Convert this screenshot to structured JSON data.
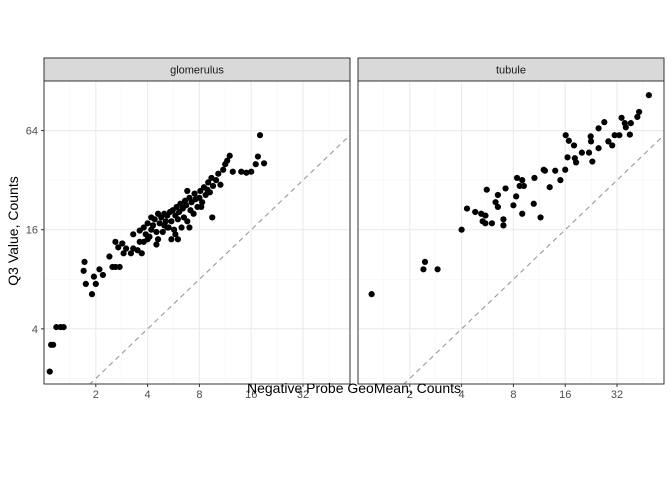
{
  "chart_data": {
    "type": "scatter",
    "xlabel": "Negative Probe GeoMean, Counts",
    "ylabel": "Q3 Value, Counts",
    "x_scale": "log2",
    "y_scale": "log2",
    "xlim": [
      1.0,
      60
    ],
    "ylim": [
      1.85,
      128
    ],
    "x_ticks": [
      2,
      4,
      8,
      16,
      32
    ],
    "x_tick_labels": [
      "2",
      "4",
      "8",
      "16",
      "32"
    ],
    "y_ticks": [
      4,
      16,
      64
    ],
    "y_tick_labels": [
      "4",
      "16",
      "64"
    ],
    "reference_line": "y = x (dashed)",
    "grid": true,
    "colors": {
      "points": "#000000",
      "reference_line": "#999999",
      "panel_background": "#ffffff",
      "panel_border": "#333333",
      "strip_background": "#d9d9d9",
      "grid_major": "#ebebeb",
      "grid_minor": "#f5f5f5"
    },
    "panels": [
      {
        "label": "glomerulus",
        "points": [
          [
            1.08,
            2.2
          ],
          [
            1.1,
            3.2
          ],
          [
            1.13,
            3.2
          ],
          [
            1.18,
            4.1
          ],
          [
            1.25,
            4.1
          ],
          [
            1.3,
            4.1
          ],
          [
            1.7,
            9.0
          ],
          [
            1.72,
            10.2
          ],
          [
            1.75,
            7.5
          ],
          [
            1.9,
            6.5
          ],
          [
            1.95,
            8.3
          ],
          [
            2.0,
            7.5
          ],
          [
            2.1,
            9.2
          ],
          [
            2.2,
            8.5
          ],
          [
            2.4,
            11.0
          ],
          [
            2.5,
            9.5
          ],
          [
            2.6,
            9.5
          ],
          [
            2.6,
            13.5
          ],
          [
            2.7,
            12.5
          ],
          [
            2.75,
            9.5
          ],
          [
            2.85,
            13.2
          ],
          [
            2.9,
            11.5
          ],
          [
            3.0,
            12.3
          ],
          [
            3.2,
            11.5
          ],
          [
            3.3,
            12.3
          ],
          [
            3.5,
            12.0
          ],
          [
            3.6,
            13.5
          ],
          [
            3.6,
            15.8
          ],
          [
            3.7,
            11.5
          ],
          [
            3.8,
            16.5
          ],
          [
            3.9,
            15.0
          ],
          [
            4.0,
            17.5
          ],
          [
            4.1,
            14.5
          ],
          [
            4.2,
            16.0
          ],
          [
            4.3,
            17.0
          ],
          [
            4.4,
            18.5
          ],
          [
            4.5,
            15.5
          ],
          [
            4.6,
            20.0
          ],
          [
            4.6,
            14.0
          ],
          [
            4.7,
            17.5
          ],
          [
            4.8,
            19.0
          ],
          [
            4.9,
            15.5
          ],
          [
            5.0,
            20.0
          ],
          [
            5.0,
            17.0
          ],
          [
            5.1,
            18.0
          ],
          [
            5.2,
            19.5
          ],
          [
            5.3,
            16.5
          ],
          [
            5.4,
            20.5
          ],
          [
            5.5,
            18.0
          ],
          [
            5.6,
            21.0
          ],
          [
            5.7,
            16.0
          ],
          [
            5.8,
            19.5
          ],
          [
            5.9,
            22.0
          ],
          [
            6.0,
            18.5
          ],
          [
            6.1,
            20.5
          ],
          [
            6.2,
            23.0
          ],
          [
            6.3,
            16.5
          ],
          [
            6.4,
            21.5
          ],
          [
            6.5,
            19.0
          ],
          [
            6.6,
            24.0
          ],
          [
            6.7,
            22.5
          ],
          [
            6.8,
            18.0
          ],
          [
            7.0,
            25.0
          ],
          [
            7.1,
            21.0
          ],
          [
            7.2,
            23.5
          ],
          [
            7.4,
            20.0
          ],
          [
            7.5,
            26.5
          ],
          [
            7.6,
            24.5
          ],
          [
            7.8,
            22.0
          ],
          [
            8.0,
            25.0
          ],
          [
            8.1,
            27.5
          ],
          [
            8.3,
            23.5
          ],
          [
            8.5,
            29.0
          ],
          [
            8.7,
            26.0
          ],
          [
            8.9,
            28.0
          ],
          [
            9.0,
            31.0
          ],
          [
            9.2,
            27.0
          ],
          [
            9.4,
            33.0
          ],
          [
            9.6,
            29.5
          ],
          [
            10.0,
            32.0
          ],
          [
            10.3,
            35.0
          ],
          [
            10.6,
            30.0
          ],
          [
            11.0,
            37.0
          ],
          [
            11.3,
            40.0
          ],
          [
            11.6,
            42.0
          ],
          [
            12.0,
            45.0
          ],
          [
            12.5,
            36.0
          ],
          [
            14.0,
            36.0
          ],
          [
            15.0,
            35.5
          ],
          [
            16.0,
            36.0
          ],
          [
            17.0,
            40.0
          ],
          [
            17.5,
            44.5
          ],
          [
            19.0,
            40.5
          ],
          [
            18.0,
            60.0
          ],
          [
            5.2,
            16.5
          ],
          [
            6.0,
            14.0
          ],
          [
            5.5,
            14.0
          ],
          [
            4.5,
            13.0
          ],
          [
            3.8,
            13.5
          ],
          [
            9.5,
            19.0
          ],
          [
            7.0,
            16.5
          ],
          [
            6.8,
            27.5
          ],
          [
            4.2,
            19.0
          ],
          [
            4.0,
            14.0
          ],
          [
            3.3,
            15.0
          ],
          [
            8.2,
            22.0
          ],
          [
            5.8,
            15.0
          ]
        ]
      },
      {
        "label": "tubule",
        "points": [
          [
            1.2,
            6.5
          ],
          [
            2.4,
            9.2
          ],
          [
            2.45,
            10.2
          ],
          [
            2.9,
            9.2
          ],
          [
            4.0,
            16.0
          ],
          [
            4.3,
            21.5
          ],
          [
            4.8,
            20.5
          ],
          [
            5.2,
            20.0
          ],
          [
            5.3,
            18.0
          ],
          [
            5.5,
            19.5
          ],
          [
            5.5,
            17.5
          ],
          [
            5.6,
            28.0
          ],
          [
            6.0,
            17.5
          ],
          [
            6.3,
            23.5
          ],
          [
            6.5,
            22.0
          ],
          [
            6.5,
            26.0
          ],
          [
            7.0,
            17.0
          ],
          [
            7.0,
            18.5
          ],
          [
            7.2,
            28.5
          ],
          [
            8.0,
            22.5
          ],
          [
            8.3,
            25.5
          ],
          [
            8.4,
            33.0
          ],
          [
            8.7,
            29.5
          ],
          [
            9.0,
            20.0
          ],
          [
            9.0,
            32.0
          ],
          [
            9.2,
            29.5
          ],
          [
            10.5,
            23.0
          ],
          [
            10.6,
            33.0
          ],
          [
            11.5,
            19.0
          ],
          [
            12.0,
            37.0
          ],
          [
            12.2,
            36.5
          ],
          [
            13.0,
            29.0
          ],
          [
            14.0,
            36.5
          ],
          [
            15.0,
            32.0
          ],
          [
            16.0,
            37.0
          ],
          [
            16.1,
            60.0
          ],
          [
            16.5,
            44.0
          ],
          [
            16.8,
            55.5
          ],
          [
            18.0,
            52.0
          ],
          [
            18.2,
            43.5
          ],
          [
            18.5,
            41.0
          ],
          [
            20.0,
            47.0
          ],
          [
            22.0,
            47.0
          ],
          [
            22.5,
            59.0
          ],
          [
            22.6,
            55.0
          ],
          [
            23.0,
            41.5
          ],
          [
            25.0,
            50.0
          ],
          [
            25.0,
            66.0
          ],
          [
            27.0,
            72.0
          ],
          [
            28.5,
            55.0
          ],
          [
            30.0,
            52.0
          ],
          [
            31.0,
            60.0
          ],
          [
            33.0,
            60.0
          ],
          [
            34.0,
            76.5
          ],
          [
            35.5,
            71.0
          ],
          [
            36.0,
            67.0
          ],
          [
            38.0,
            60.5
          ],
          [
            38.5,
            71.0
          ],
          [
            42.0,
            77.5
          ],
          [
            43.0,
            83.0
          ],
          [
            49.0,
            105.0
          ]
        ]
      }
    ]
  }
}
